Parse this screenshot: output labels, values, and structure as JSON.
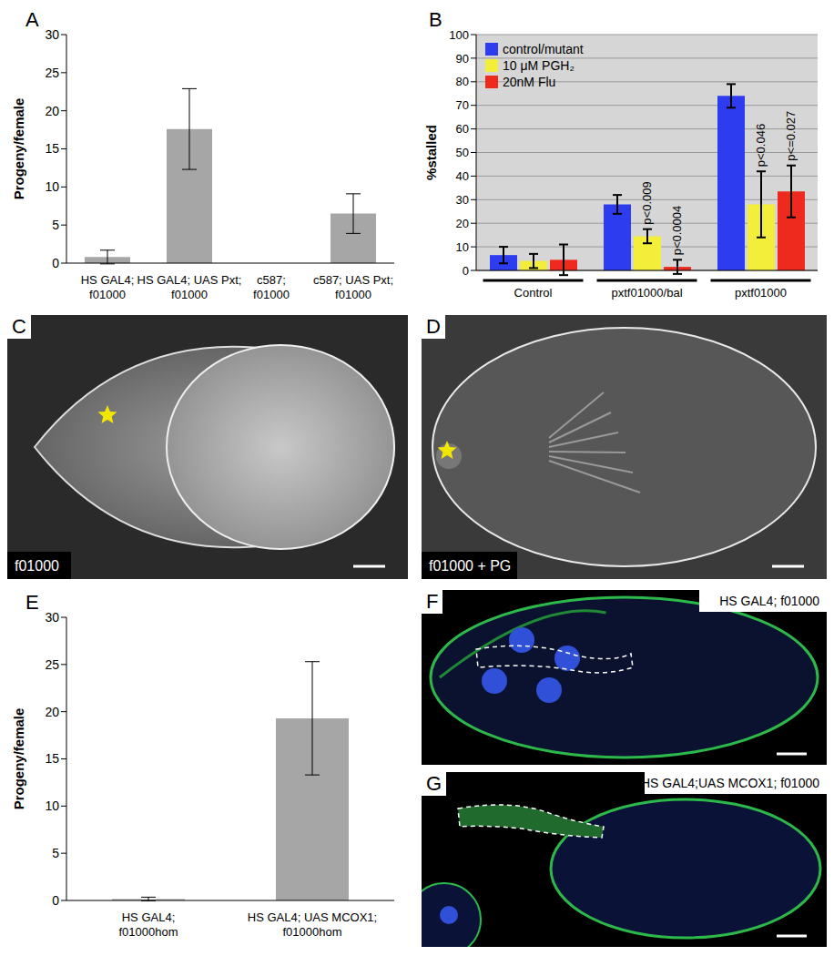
{
  "chart_data": [
    {
      "panel": "A",
      "type": "bar",
      "y_label": "Progeny/female",
      "categories": [
        "HS GAL4; f01000",
        "HS GAL4; UAS Pxt; f01000",
        "c587; f01000",
        "c587; UAS Pxt; f01000"
      ],
      "values": [
        0.8,
        17.6,
        0,
        6.5
      ],
      "errors": [
        0.9,
        5.3,
        0,
        2.6
      ],
      "color": "#a6a6a6",
      "ylim": [
        0,
        30
      ],
      "yticks": [
        0,
        5,
        10,
        15,
        20,
        25,
        30
      ],
      "grid": false
    },
    {
      "panel": "B",
      "type": "bar",
      "y_label": "%stalled",
      "categories": [
        "Control",
        "pxtf01000/bal",
        "pxtf01000"
      ],
      "series": [
        {
          "name": "control/mutant",
          "color": "#2e3cf0",
          "values": [
            6.5,
            28,
            74
          ],
          "errors": [
            3.5,
            4,
            5
          ]
        },
        {
          "name": "10 μM PGH₂",
          "color": "#f2ee3a",
          "values": [
            4,
            14.5,
            28
          ],
          "errors": [
            3,
            3,
            14
          ]
        },
        {
          "name": "20nM Flu",
          "color": "#ee2a1e",
          "values": [
            4.5,
            1.5,
            33.5
          ],
          "errors": [
            6.5,
            3,
            11
          ]
        }
      ],
      "annotations": [
        {
          "text": "p<0.009",
          "series": "10 μM PGH₂",
          "category": "pxtf01000/bal"
        },
        {
          "text": "p<0.0004",
          "series": "20nM Flu",
          "category": "pxtf01000/bal"
        },
        {
          "text": "p<0.046",
          "series": "10 μM PGH₂",
          "category": "pxtf01000"
        },
        {
          "text": "p<=0.027",
          "series": "20nM Flu",
          "category": "pxtf01000"
        }
      ],
      "ylim": [
        0,
        100
      ],
      "yticks": [
        0,
        10,
        20,
        30,
        40,
        50,
        60,
        70,
        80,
        90,
        100
      ],
      "grid": true,
      "legend": "upper left"
    },
    {
      "panel": "E",
      "type": "bar",
      "y_label": "Progeny/female",
      "categories": [
        "HS GAL4; f01000hom",
        "HS GAL4; UAS MCOX1; f01000hom"
      ],
      "values": [
        0.15,
        19.3
      ],
      "errors": [
        0.2,
        6
      ],
      "color": "#a6a6a6",
      "ylim": [
        0,
        30
      ],
      "yticks": [
        0,
        5,
        10,
        15,
        20,
        25,
        30
      ],
      "grid": false
    }
  ],
  "images": [
    {
      "panel": "C",
      "text": "f01000"
    },
    {
      "panel": "D",
      "text": "f01000 + PG"
    },
    {
      "panel": "F",
      "text": "HS GAL4; f01000"
    },
    {
      "panel": "G",
      "text": "HS GAL4;UAS MCOX1; f01000"
    }
  ]
}
